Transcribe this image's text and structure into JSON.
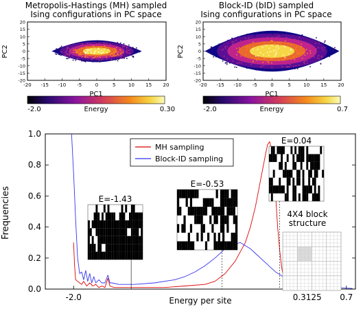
{
  "chart_data": [
    {
      "type": "scatter",
      "title": "Metropolis-Hastings (MH) sampled\nIsing configurations in PC space",
      "xlabel": "PC1",
      "ylabel": "PC2",
      "xlim": [
        -20,
        20
      ],
      "ylim": [
        -20,
        20
      ],
      "xticks": [
        -20,
        -15,
        -10,
        -5,
        0,
        5,
        10,
        15,
        20
      ],
      "yticks": [
        -20,
        -15,
        -10,
        -5,
        0,
        5,
        10,
        15,
        20
      ],
      "cloud": {
        "rx": 13,
        "ry": 7.5,
        "dense_rx": 8,
        "dense_ry": 5
      },
      "colorbar": {
        "label": "Energy",
        "min_label": "-2.0",
        "max_label": "0.30"
      },
      "colors": {
        "low": "#0d0887",
        "mid": "#c0238c",
        "high": "#f6d746",
        "top": "#fcfbbd"
      }
    },
    {
      "type": "scatter",
      "title": "Block-ID (bID) sampled\nIsing configurations in PC space",
      "xlabel": "PC1",
      "ylabel": "PC2",
      "xlim": [
        -20,
        20
      ],
      "ylim": [
        -20,
        20
      ],
      "xticks": [
        -20,
        -15,
        -10,
        -5,
        0,
        5,
        10,
        15,
        20
      ],
      "yticks": [
        -20,
        -15,
        -10,
        -5,
        0,
        5,
        10,
        15,
        20
      ],
      "cloud": {
        "rx": 19.5,
        "ry": 14,
        "dense_rx": 13,
        "dense_ry": 9.5
      },
      "colorbar": {
        "label": "Energy",
        "min_label": "-2.0",
        "max_label": "0.7"
      },
      "colors": {
        "low": "#0d0887",
        "mid": "#c0238c",
        "high": "#f6d746",
        "top": "#fcfbbd"
      }
    },
    {
      "type": "line",
      "xlabel": "Energy per site",
      "ylabel": "Frequencies",
      "xlim": [
        -2.28,
        0.79
      ],
      "ylim": [
        0,
        1.0
      ],
      "xticks": [
        -2.0,
        0.3125,
        0.7
      ],
      "xtick_labels": [
        "-2.0",
        "0.3125",
        "0.7"
      ],
      "yticks": [
        0.0,
        0.2,
        0.4,
        0.6,
        0.8,
        1.0
      ],
      "legend_position": "top-center",
      "series": [
        {
          "name": "MH sampling",
          "color": "#dd0000",
          "x": [
            -2.0,
            -1.99,
            -1.98,
            -1.96,
            -1.94,
            -1.92,
            -1.9,
            -1.87,
            -1.84,
            -1.81,
            -1.78,
            -1.75,
            -1.72,
            -1.69,
            -1.66,
            -1.64,
            -1.6,
            -1.5,
            -1.3,
            -1.1,
            -0.9,
            -0.7,
            -0.6,
            -0.5,
            -0.4,
            -0.3,
            -0.25,
            -0.2,
            -0.15,
            -0.12,
            -0.1,
            -0.08,
            -0.06,
            -0.04,
            -0.02,
            0.0,
            0.02,
            0.04,
            0.06,
            0.08,
            0.1,
            0.15,
            0.2,
            0.3,
            0.4
          ],
          "y": [
            0.3,
            0.15,
            0.06,
            0.05,
            0.04,
            0.03,
            0.05,
            0.02,
            0.04,
            0.02,
            0.03,
            0.01,
            0.02,
            0.01,
            0.07,
            0.02,
            0.01,
            0.01,
            0.01,
            0.01,
            0.02,
            0.03,
            0.05,
            0.1,
            0.18,
            0.3,
            0.4,
            0.53,
            0.7,
            0.8,
            0.87,
            0.93,
            0.95,
            0.9,
            0.78,
            0.6,
            0.4,
            0.25,
            0.14,
            0.07,
            0.03,
            0.01,
            0.005,
            0.0,
            0.0
          ]
        },
        {
          "name": "Block-ID sampling",
          "color": "#3333ee",
          "x": [
            -2.02,
            -2.0,
            -1.98,
            -1.96,
            -1.94,
            -1.92,
            -1.9,
            -1.88,
            -1.86,
            -1.84,
            -1.82,
            -1.8,
            -1.78,
            -1.75,
            -1.72,
            -1.69,
            -1.66,
            -1.64,
            -1.62,
            -1.55,
            -1.4,
            -1.2,
            -1.0,
            -0.9,
            -0.8,
            -0.7,
            -0.6,
            -0.5,
            -0.45,
            -0.4,
            -0.35,
            -0.3,
            -0.25,
            -0.2,
            -0.15,
            -0.1,
            -0.05,
            0.0,
            0.05,
            0.1,
            0.2,
            0.3,
            0.4,
            0.5,
            0.6,
            0.7,
            0.76
          ],
          "y": [
            1.0,
            0.75,
            0.45,
            0.2,
            0.1,
            0.11,
            0.06,
            0.12,
            0.05,
            0.1,
            0.04,
            0.08,
            0.04,
            0.06,
            0.04,
            0.04,
            0.09,
            0.04,
            0.04,
            0.03,
            0.03,
            0.04,
            0.06,
            0.08,
            0.11,
            0.15,
            0.2,
            0.26,
            0.28,
            0.29,
            0.3,
            0.28,
            0.26,
            0.23,
            0.2,
            0.17,
            0.14,
            0.11,
            0.09,
            0.07,
            0.05,
            0.035,
            0.025,
            0.015,
            0.01,
            0.006,
            0.004
          ]
        }
      ],
      "annotations": [
        {
          "label": "E=-1.43",
          "energy": -1.43,
          "grid": "0.1.5.16.10.12.0|8.11.14.3.7.14.15|13.15.15.15.15.15.15|3.15.15.15.15.12.11|5.14.15.15.15.15.15|15.6.14.15.15.15.15|15.15.15.15.15.15.15"
        },
        {
          "label": "E=-0.53",
          "energy": -0.53,
          "grid": "15.15.3.0.4.15.14|1.5.0.15.1.15.15|3.14.15.3.15.11.7|8.0.15.8.6.15.12|13.4.8.1.1.11.8|0.2.10.4.10.2.14|15.15.0.2.14.15.15"
        },
        {
          "label": "E=0.04",
          "energy": 0.04,
          "grid": "6.15.8.10.11.0.4|15.4.2.13.11.15.3|0.6.1.3.9.14.3|4.8.15.12.2.11.9|3.2.6.13.2.13.0|15.15.2.3.14.11.2|2.0.3.11.14.12.3"
        },
        {
          "label": "4X4 block\nstructure"
        }
      ]
    }
  ]
}
